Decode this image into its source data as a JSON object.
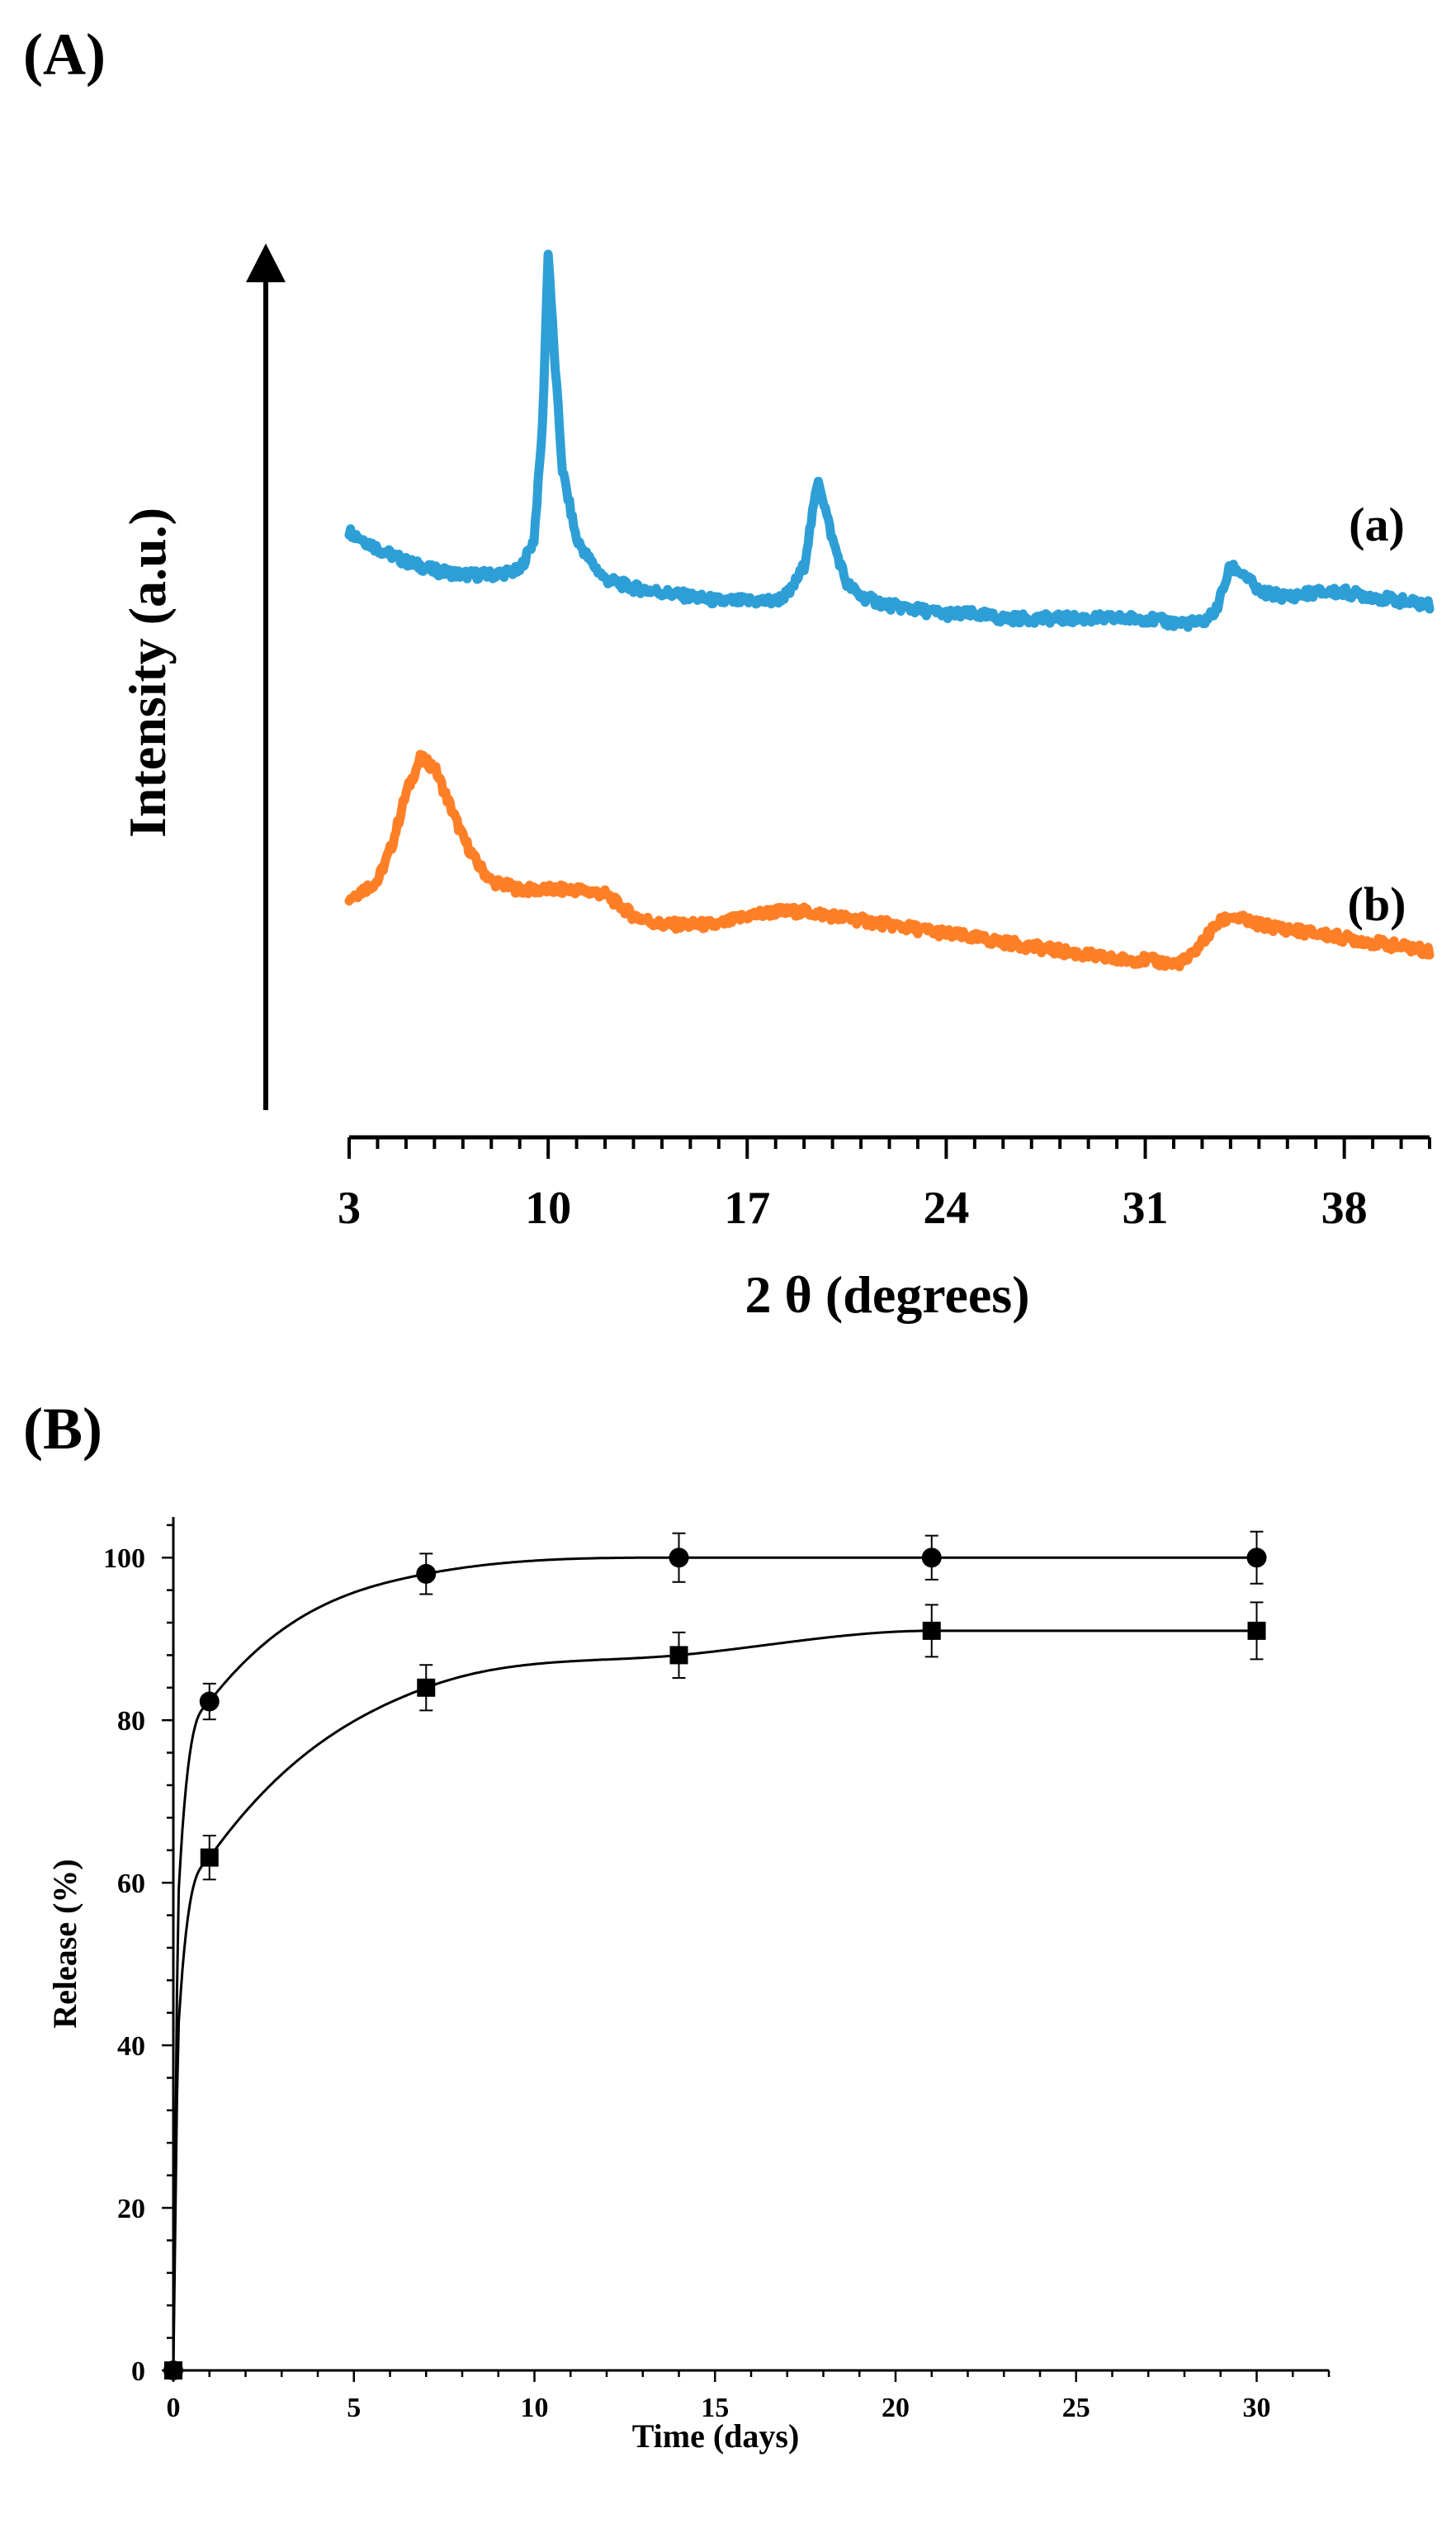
{
  "figure": {
    "panel_a_label": "(A)",
    "panel_b_label": "(B)"
  },
  "colors": {
    "series_a": "#2E9FD6",
    "series_b": "#FF7F27",
    "axis": "#000000"
  },
  "chart_data": [
    {
      "panel": "A",
      "type": "line",
      "title": "",
      "xlabel": "2 θ (degrees)",
      "ylabel": "Intensity (a.u.)",
      "xlim": [
        3,
        41
      ],
      "ylim": [
        0,
        100
      ],
      "x_ticks": [
        3,
        10,
        17,
        24,
        31,
        38
      ],
      "series": [
        {
          "name": "(a)",
          "color": "#2E9FD6",
          "x": [
            3,
            4,
            5,
            6,
            7,
            8,
            9,
            9.5,
            9.8,
            10,
            10.2,
            10.5,
            11,
            11.5,
            12,
            13,
            14,
            15,
            16,
            17,
            18,
            18.5,
            19,
            19.5,
            20,
            20.5,
            21,
            22,
            23,
            24,
            25,
            26,
            27,
            28,
            29,
            30,
            31,
            32,
            33,
            33.5,
            34,
            34.5,
            35,
            36,
            37,
            38,
            39,
            40,
            41
          ],
          "y": [
            61,
            59,
            57.5,
            56.5,
            56,
            56,
            56.5,
            60,
            73,
            93,
            82,
            68,
            60,
            57.5,
            55.5,
            54.5,
            54,
            53.5,
            53,
            53,
            53,
            54,
            57,
            67,
            60,
            55,
            53.5,
            52.5,
            52,
            51.5,
            51.5,
            51,
            51,
            51,
            51,
            51,
            51,
            50.5,
            50.5,
            52,
            57,
            56,
            54,
            53.5,
            54,
            54,
            53.5,
            53,
            52.5
          ]
        },
        {
          "name": "(b)",
          "color": "#FF7F27",
          "x": [
            3,
            3.5,
            4,
            4.5,
            5,
            5.5,
            6,
            6.5,
            7,
            7.5,
            8,
            9,
            10,
            11,
            12,
            13,
            14,
            15,
            16,
            17,
            18,
            19,
            20,
            21,
            22,
            23,
            24,
            25,
            26,
            27,
            28,
            29,
            30,
            31,
            32,
            32.5,
            33,
            33.5,
            34,
            35,
            36,
            37,
            38,
            39,
            40,
            41
          ],
          "y": [
            19,
            20,
            21,
            25,
            31,
            35,
            34,
            30,
            26,
            23,
            21,
            20,
            20,
            20,
            19.5,
            17,
            16,
            16,
            16,
            17,
            17.5,
            17.5,
            17,
            16.5,
            16,
            15.5,
            15,
            14.5,
            14,
            13.5,
            13,
            12.5,
            12,
            12,
            11.5,
            12,
            14,
            16,
            17,
            16,
            15.5,
            15,
            14.5,
            14,
            13.5,
            13
          ]
        }
      ]
    },
    {
      "panel": "B",
      "type": "line",
      "title": "",
      "xlabel": "Time (days)",
      "ylabel": "Release (%)",
      "xlim": [
        0,
        32
      ],
      "ylim": [
        0,
        105
      ],
      "x_ticks": [
        0,
        5,
        10,
        15,
        20,
        25,
        30
      ],
      "y_ticks": [
        0,
        20,
        40,
        60,
        80,
        100
      ],
      "series": [
        {
          "name": "circles",
          "marker": "circle",
          "x": [
            0,
            1,
            7,
            14,
            21,
            30
          ],
          "y": [
            0,
            82.3,
            98,
            100,
            100,
            100
          ],
          "error": [
            0,
            2.2,
            2.5,
            3,
            2.7,
            3.2
          ]
        },
        {
          "name": "squares",
          "marker": "square",
          "x": [
            0,
            1,
            7,
            14,
            21,
            30
          ],
          "y": [
            0,
            63.1,
            84,
            88,
            91,
            91
          ],
          "error": [
            0,
            2.7,
            2.8,
            2.8,
            3.2,
            3.5
          ]
        }
      ]
    }
  ]
}
